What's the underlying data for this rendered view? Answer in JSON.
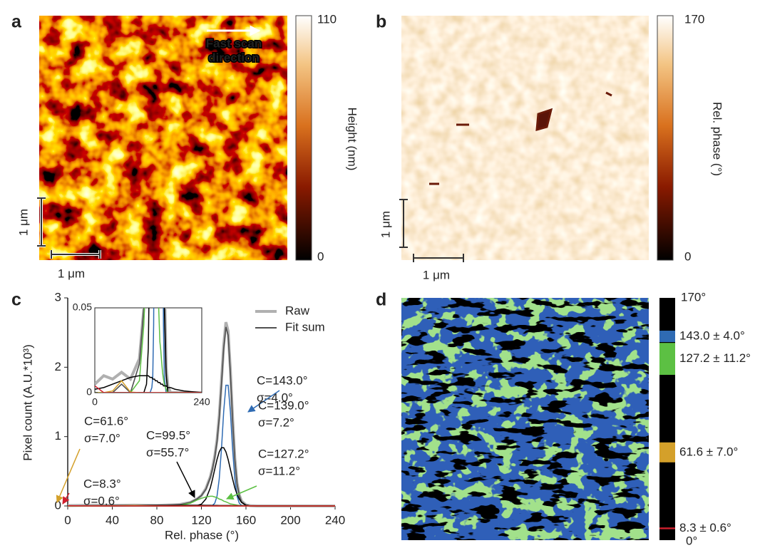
{
  "panels": {
    "a": {
      "label": "a",
      "colorbar": {
        "lim": [
          0,
          110
        ],
        "ticks": [
          0,
          110
        ],
        "label": "Height  (nm)"
      },
      "annotation": [
        "Fast scan",
        "direction"
      ],
      "scalebar_x": "1 μm",
      "scalebar_y": "1 μm"
    },
    "b": {
      "label": "b",
      "colorbar": {
        "lim": [
          0,
          170
        ],
        "ticks": [
          0,
          170
        ],
        "label": "Rel. phase  (°)"
      },
      "scalebar_x": "1 μm",
      "scalebar_y": "1 μm"
    },
    "d": {
      "label": "d",
      "colorbar": {
        "lim": [
          0,
          170
        ],
        "ticks": [
          {
            "value": 0,
            "label": "0°"
          },
          {
            "value": 170,
            "label": "170°"
          }
        ]
      },
      "phases": [
        {
          "center": 143.0,
          "sigma": 4.0,
          "label": "143.0 ± 4.0°",
          "color": "#2f6bb3"
        },
        {
          "center": 127.2,
          "sigma": 11.2,
          "label": "127.2 ± 11.2°",
          "color": "#5cc043"
        },
        {
          "center": 61.6,
          "sigma": 7.0,
          "label": "61.6 ± 7.0°",
          "color": "#d4a02a"
        },
        {
          "center": 8.3,
          "sigma": 0.6,
          "label": "8.3 ± 0.6°",
          "color": "#d0202e"
        }
      ]
    }
  },
  "chart_data": {
    "type": "line",
    "panel_label": "c",
    "x_label": "Rel. phase (°)",
    "y_label": "Pixel count  (A.U.*10³)",
    "xlim": [
      0,
      240
    ],
    "xticks": [
      0,
      40,
      80,
      120,
      160,
      200,
      240
    ],
    "ylim": [
      0,
      3
    ],
    "yticks": [
      0,
      1,
      2,
      3
    ],
    "x": [
      0,
      20,
      40,
      60,
      80,
      100,
      110,
      116,
      120,
      124,
      128,
      130,
      132,
      134,
      136,
      138,
      140,
      142,
      144,
      146,
      148,
      150,
      152,
      154,
      156,
      160,
      164,
      170,
      180,
      200,
      240
    ],
    "series": [
      {
        "name": "Raw",
        "color": "#b0b0b0",
        "values": [
          0.005,
          0.01,
          0.008,
          0.012,
          0.008,
          0.02,
          0.05,
          0.1,
          0.15,
          0.25,
          0.42,
          0.55,
          0.72,
          0.95,
          1.3,
          1.8,
          2.32,
          2.65,
          2.52,
          1.96,
          1.27,
          0.69,
          0.33,
          0.16,
          0.07,
          0.015,
          0.004,
          0,
          0,
          0,
          0
        ]
      },
      {
        "name": "Fit sum",
        "color": "#505050",
        "values": [
          0,
          0,
          0,
          0.005,
          0,
          0.017,
          0.05,
          0.1,
          0.15,
          0.24,
          0.41,
          0.54,
          0.7,
          0.93,
          1.27,
          1.75,
          2.27,
          2.58,
          2.46,
          1.92,
          1.24,
          0.67,
          0.32,
          0.15,
          0.06,
          0.012,
          0,
          0,
          0,
          0,
          0
        ]
      }
    ],
    "legend": "upper right",
    "components": [
      {
        "label": [
          "C=143.0°",
          "σ=4.0°"
        ],
        "color": "#2f6bb3",
        "values": [
          0,
          0,
          0,
          0,
          0,
          0,
          0,
          0,
          0,
          0,
          0.003,
          0.009,
          0.04,
          0.14,
          0.39,
          0.82,
          1.36,
          1.74,
          1.74,
          1.36,
          0.82,
          0.39,
          0.14,
          0.04,
          0.009,
          0,
          0,
          0,
          0,
          0,
          0
        ]
      },
      {
        "label": [
          "C=139.0°",
          "σ=7.2°"
        ],
        "color": "#000000",
        "values": [
          0,
          0,
          0,
          0,
          0,
          0,
          0,
          0.005,
          0.026,
          0.1,
          0.26,
          0.39,
          0.53,
          0.67,
          0.78,
          0.84,
          0.84,
          0.78,
          0.67,
          0.53,
          0.39,
          0.26,
          0.17,
          0.1,
          0.05,
          0.01,
          0,
          0,
          0,
          0,
          0
        ]
      },
      {
        "label": [
          "C=127.2°",
          "σ=11.2°"
        ],
        "color": "#5cc043",
        "values": [
          0,
          0,
          0,
          0,
          0,
          0.007,
          0.04,
          0.085,
          0.11,
          0.13,
          0.14,
          0.14,
          0.13,
          0.12,
          0.1,
          0.09,
          0.07,
          0.06,
          0.045,
          0.03,
          0.025,
          0.018,
          0.012,
          0.008,
          0.005,
          0.002,
          0,
          0,
          0,
          0,
          0
        ]
      },
      {
        "label": [
          "C=99.5°",
          "σ=55.7°"
        ],
        "color": "#000000",
        "values": [
          0.002,
          0.003,
          0.005,
          0.007,
          0.009,
          0.01,
          0.01,
          0.01,
          0.01,
          0.009,
          0.009,
          0.008,
          0.008,
          0.008,
          0.007,
          0.007,
          0.007,
          0.006,
          0.006,
          0.006,
          0.005,
          0.005,
          0.005,
          0.004,
          0.004,
          0.004,
          0.003,
          0.003,
          0.002,
          0.001,
          0
        ]
      },
      {
        "label": [
          "C=61.6°",
          "σ=7.0°"
        ],
        "color": "#d4a02a",
        "values": [
          0,
          0,
          0.001,
          0.007,
          0.0003,
          0,
          0,
          0,
          0,
          0,
          0,
          0,
          0,
          0,
          0,
          0,
          0,
          0,
          0,
          0,
          0,
          0,
          0,
          0,
          0,
          0,
          0,
          0,
          0,
          0,
          0
        ]
      },
      {
        "label": [
          "C=8.3°",
          "σ=0.6°"
        ],
        "color": "#d0202e",
        "values": [
          0.004,
          0,
          0,
          0,
          0,
          0,
          0,
          0,
          0,
          0,
          0,
          0,
          0,
          0,
          0,
          0,
          0,
          0,
          0,
          0,
          0,
          0,
          0,
          0,
          0,
          0,
          0,
          0,
          0,
          0,
          0
        ]
      }
    ],
    "inset": {
      "xlim": [
        0,
        240
      ],
      "xticks": [
        0,
        240
      ],
      "ylim": [
        0,
        0.05
      ],
      "yticks": [
        0,
        0.05
      ]
    }
  }
}
